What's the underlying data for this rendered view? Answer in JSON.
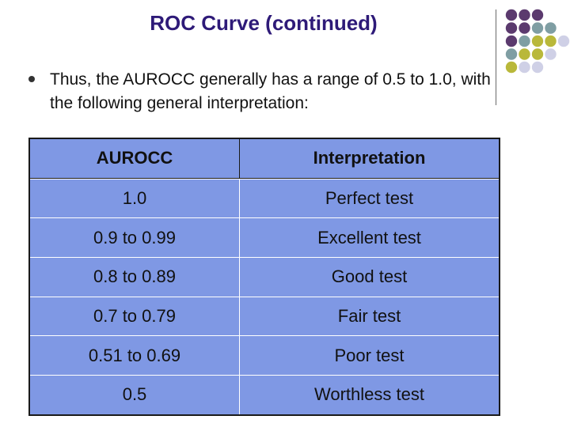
{
  "title": "ROC Curve (continued)",
  "bullet_text": "Thus, the AUROCC  generally has a range of 0.5 to 1.0, with the following general interpretation:",
  "table": {
    "headers": [
      "AUROCC",
      "Interpretation"
    ],
    "rows": [
      [
        "1.0",
        "Perfect test"
      ],
      [
        "0.9 to 0.99",
        "Excellent test"
      ],
      [
        "0.8 to 0.89",
        "Good test"
      ],
      [
        "0.7 to 0.79",
        "Fair test"
      ],
      [
        "0.51 to 0.69",
        "Poor test"
      ],
      [
        "0.5",
        "Worthless test"
      ]
    ]
  },
  "colors": {
    "title": "#2e1a78",
    "table_fill": "#7f98e4",
    "dot_purple": "#5b3a6e",
    "dot_teal": "#7f9ea3",
    "dot_olive": "#b9b83a",
    "dot_lavender": "#cfd0e6"
  }
}
